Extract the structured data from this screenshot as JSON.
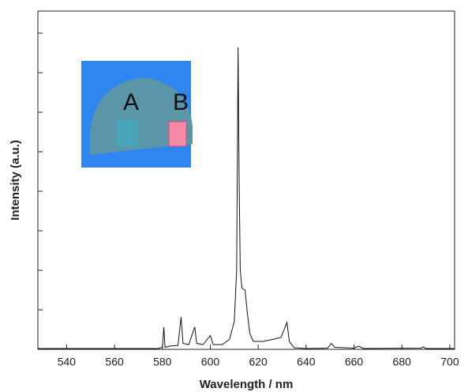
{
  "chart_data": {
    "type": "line",
    "xlabel": "Wavelength / nm",
    "ylabel": "Intensity (a.u.)",
    "color": "#111111",
    "xlim": [
      528,
      702
    ],
    "xticks": [
      540,
      560,
      580,
      600,
      620,
      640,
      660,
      680,
      700
    ],
    "ylim": [
      0,
      8.56
    ],
    "yticks": [
      1,
      2,
      3,
      4,
      5,
      6,
      7,
      8
    ],
    "x": [
      528,
      578,
      580.0,
      580.6,
      581.1,
      583,
      586.5,
      587.8,
      588.6,
      591,
      593.5,
      594.3,
      597,
      600,
      601.2,
      605,
      608,
      610,
      611,
      611.6,
      612,
      612.5,
      613.2,
      614.5,
      615.5,
      616.5,
      618,
      622,
      626,
      629.5,
      632,
      633,
      635,
      640,
      649,
      650.5,
      652,
      660,
      662,
      664,
      688,
      689,
      690,
      702
    ],
    "values": [
      0.02,
      0.02,
      0.05,
      0.56,
      0.05,
      0.08,
      0.1,
      0.82,
      0.15,
      0.12,
      0.57,
      0.15,
      0.12,
      0.35,
      0.12,
      0.12,
      0.25,
      0.7,
      2.0,
      7.64,
      4.5,
      2.0,
      1.55,
      1.5,
      0.9,
      0.4,
      0.2,
      0.2,
      0.25,
      0.3,
      0.68,
      0.2,
      0.04,
      0.02,
      0.03,
      0.15,
      0.05,
      0.03,
      0.08,
      0.02,
      0.03,
      0.06,
      0.02,
      0.02
    ],
    "inset": {
      "labels": [
        "A",
        "B"
      ]
    }
  }
}
